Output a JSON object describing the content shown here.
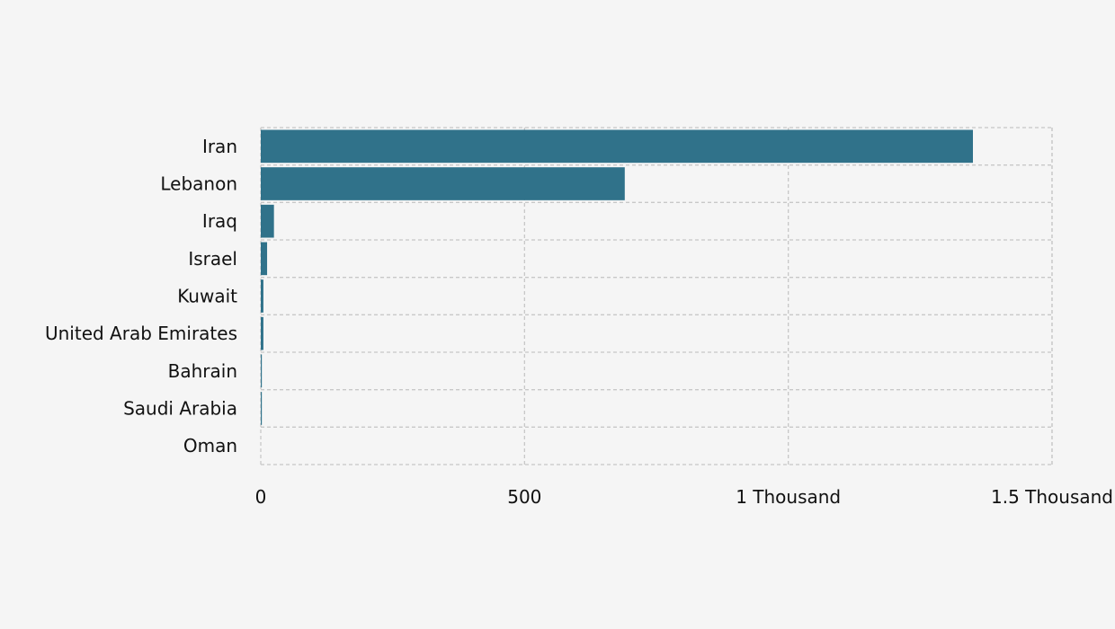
{
  "chart_data": {
    "type": "bar",
    "orientation": "horizontal",
    "title": "",
    "xlabel": "",
    "ylabel": "",
    "categories": [
      "Iran",
      "Lebanon",
      "Iraq",
      "Israel",
      "Kuwait",
      "United Arab Emirates",
      "Bahrain",
      "Saudi Arabia",
      "Oman"
    ],
    "values": [
      1350,
      690,
      25,
      12,
      5,
      5,
      2,
      2,
      0
    ],
    "xlim": [
      0,
      1500
    ],
    "x_ticks": [
      {
        "value": 0,
        "label": "0"
      },
      {
        "value": 500,
        "label": "500"
      },
      {
        "value": 1000,
        "label": "1 Thousand"
      },
      {
        "value": 1500,
        "label": "1.5 Thousand"
      }
    ],
    "grid": true,
    "grid_style": "dashed",
    "bar_color": "#30728a",
    "grid_color": "#c8c8c8",
    "background": "#f5f5f5"
  }
}
